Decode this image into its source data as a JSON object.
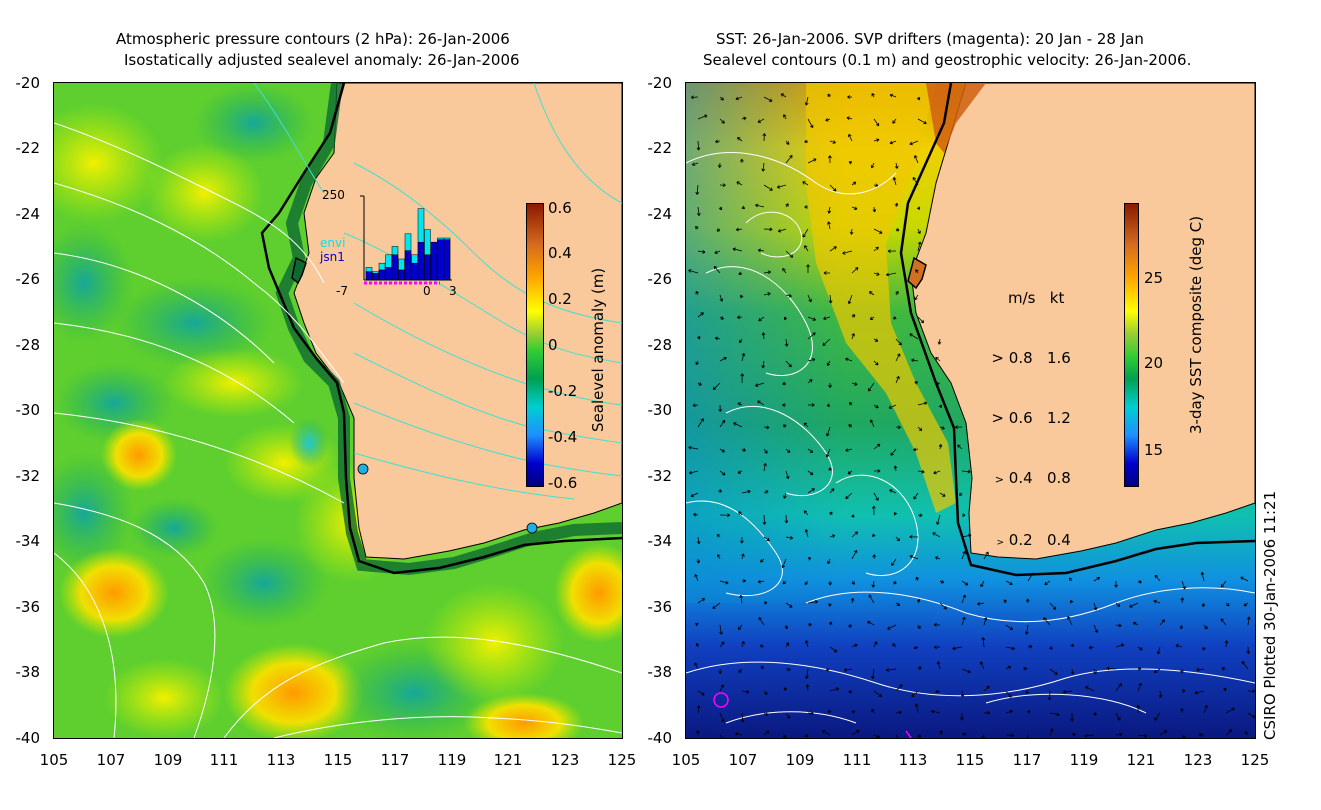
{
  "left_title": {
    "line1": "Atmospheric pressure contours (2 hPa): 26-Jan-2006",
    "line2": "Isostatically adjusted sealevel anomaly: 26-Jan-2006"
  },
  "right_title": {
    "line1": "SST: 26-Jan-2006. SVP drifters (magenta): 20 Jan - 28 Jan",
    "line2": "Sealevel contours (0.1 m) and geostrophic velocity: 26-Jan-2006."
  },
  "axes": {
    "y_ticks": [
      "-20",
      "-22",
      "-24",
      "-26",
      "-28",
      "-30",
      "-32",
      "-34",
      "-36",
      "-38",
      "-40"
    ],
    "x_ticks": [
      "105",
      "107",
      "109",
      "111",
      "113",
      "115",
      "117",
      "119",
      "121",
      "123",
      "125"
    ]
  },
  "left_colorbar": {
    "label": "Sealevel anomaly (m)",
    "ticks": [
      "0.6",
      "0.4",
      "0.2",
      "0",
      "-0.2",
      "-0.4",
      "-0.6"
    ],
    "colors": [
      "#8b1a00",
      "#d2691e",
      "#ffa500",
      "#ffff00",
      "#9acd32",
      "#32cd32",
      "#00a050",
      "#00ced1",
      "#1e90ff",
      "#0000cd",
      "#000080"
    ]
  },
  "right_colorbar": {
    "label": "3-day SST composite (deg C)",
    "ticks": [
      "25",
      "20",
      "15"
    ],
    "colors": [
      "#8b1a00",
      "#d2691e",
      "#ffa500",
      "#ffff00",
      "#9acd32",
      "#32cd32",
      "#00a050",
      "#00ced1",
      "#1e90ff",
      "#0000cd",
      "#000080"
    ]
  },
  "inset": {
    "top_label": "250",
    "x_labels": [
      "-7",
      "0",
      "3"
    ],
    "legend": [
      "envi",
      "jsn1"
    ],
    "colors": {
      "envi": "#00e5ee",
      "jsn1": "#0000cc"
    },
    "bars_envi": [
      0.15,
      0.1,
      0.2,
      0.3,
      0.4,
      0.25,
      0.55,
      0.3,
      0.85,
      0.6,
      0.45,
      0.5,
      0.5
    ],
    "bars_jsn1": [
      0.1,
      0.08,
      0.12,
      0.15,
      0.3,
      0.12,
      0.35,
      0.2,
      0.45,
      0.3,
      0.45,
      0.48,
      0.48
    ]
  },
  "vector_legend": {
    "header": "m/s   kt",
    "rows": [
      "0.8   1.6",
      "0.6   1.2",
      "0.4   0.8",
      "0.2   0.4"
    ]
  },
  "credit": "CSIRO Plotted 30-Jan-2006 11:21",
  "map_colors": {
    "land": "#f9c99c",
    "coast": "#000000",
    "contour_white": "#ffffff",
    "contour_cyan": "#40e0d0",
    "drifter": "#ff00ff",
    "sta_dot": "#20b0e0"
  }
}
